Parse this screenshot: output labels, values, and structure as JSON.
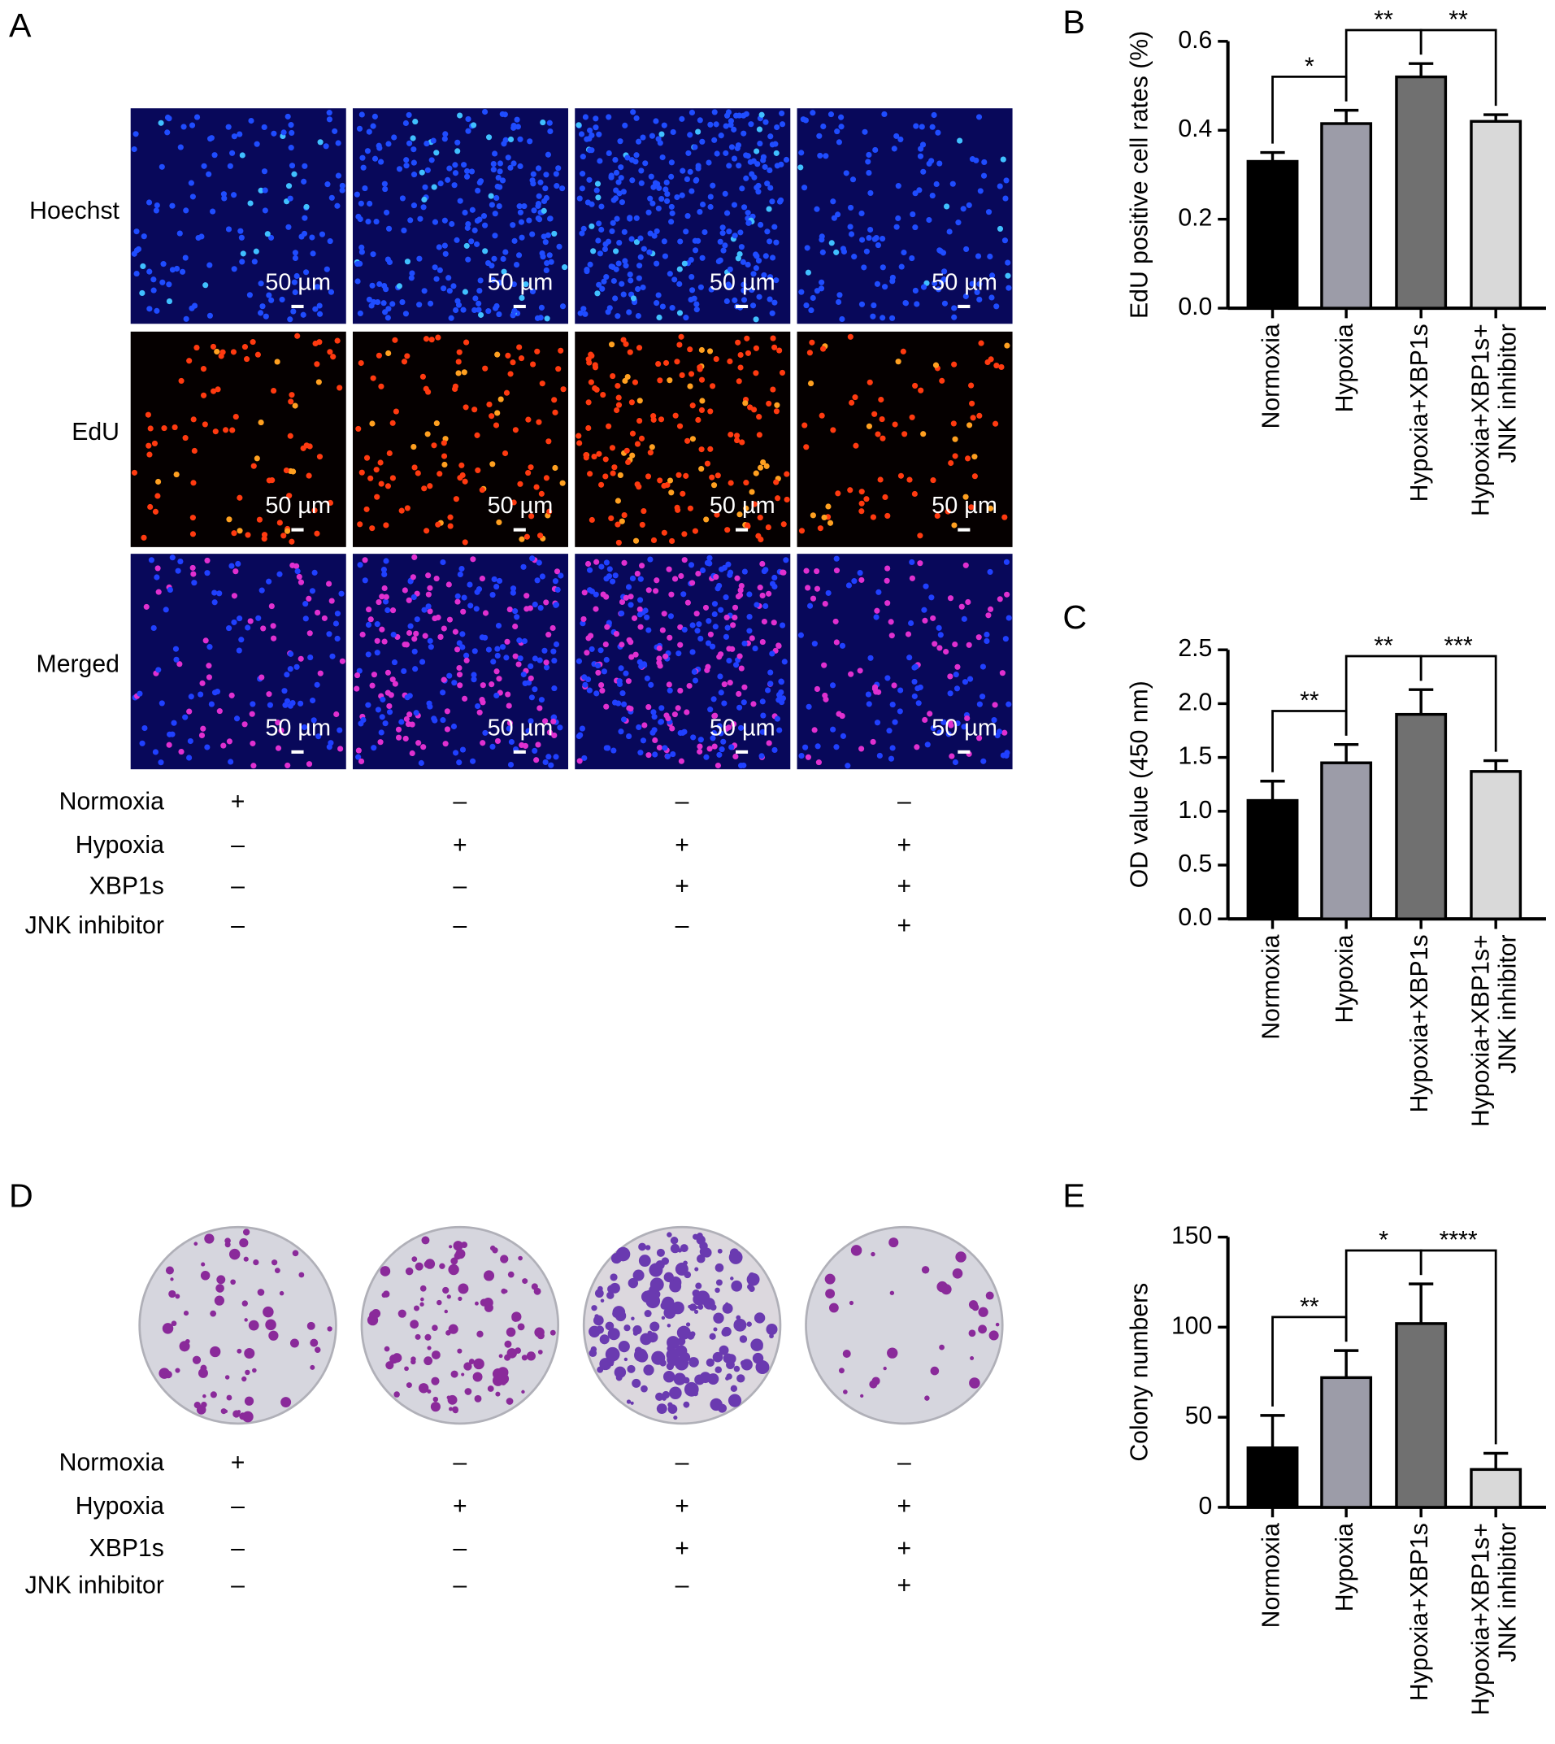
{
  "panel_a": {
    "label": "A",
    "rows": [
      "Hoechst",
      "EdU",
      "Merged"
    ],
    "scale_bar": "50 µm",
    "conditions": [
      {
        "name": "Normoxia",
        "marks": [
          "+",
          "–",
          "–",
          "–"
        ]
      },
      {
        "name": "Hypoxia",
        "marks": [
          "–",
          "+",
          "+",
          "+"
        ]
      },
      {
        "name": "XBP1s",
        "marks": [
          "–",
          "–",
          "+",
          "+"
        ]
      },
      {
        "name": "JNK inhibitor",
        "marks": [
          "–",
          "–",
          "–",
          "+"
        ]
      }
    ]
  },
  "panel_d": {
    "label": "D",
    "conditions": [
      {
        "name": "Normoxia",
        "marks": [
          "+",
          "–",
          "–",
          "–"
        ]
      },
      {
        "name": "Hypoxia",
        "marks": [
          "–",
          "+",
          "+",
          "+"
        ]
      },
      {
        "name": "XBP1s",
        "marks": [
          "–",
          "–",
          "+",
          "+"
        ]
      },
      {
        "name": "JNK inhibitor",
        "marks": [
          "–",
          "–",
          "–",
          "+"
        ]
      }
    ]
  },
  "chart_data": [
    {
      "type": "bar",
      "label": "B",
      "ylabel": "EdU positive cell rates (%)",
      "categories": [
        "Normoxia",
        "Hypoxia",
        "Hypoxia+XBP1s",
        "Hypoxia+XBP1s+\nJNK inhibitor"
      ],
      "values": [
        0.33,
        0.415,
        0.52,
        0.42
      ],
      "errors": [
        0.02,
        0.03,
        0.03,
        0.015
      ],
      "colors": [
        "#000000",
        "#9c9ca8",
        "#707070",
        "#d9d9d9"
      ],
      "ylim": [
        0,
        0.6
      ],
      "yticks": [
        {
          "value": 0,
          "label": "0.0"
        },
        0.2,
        0.4,
        0.6
      ],
      "annotations": [
        "*",
        "**",
        "**"
      ]
    },
    {
      "type": "bar",
      "label": "C",
      "ylabel": "OD value (450 nm)",
      "categories": [
        "Normoxia",
        "Hypoxia",
        "Hypoxia+XBP1s",
        "Hypoxia+XBP1s+\nJNK inhibitor"
      ],
      "values": [
        1.1,
        1.45,
        1.9,
        1.37
      ],
      "errors": [
        0.18,
        0.17,
        0.23,
        0.1
      ],
      "colors": [
        "#000000",
        "#9c9ca8",
        "#707070",
        "#d9d9d9"
      ],
      "ylim": [
        0,
        2.5
      ],
      "yticks": [
        {
          "value": 0,
          "label": "0.0"
        },
        0.5,
        {
          "value": 1,
          "label": "1.0"
        },
        1.5,
        {
          "value": 2,
          "label": "2.0"
        },
        2.5
      ],
      "annotations": [
        "**",
        "**",
        "***"
      ]
    },
    {
      "type": "bar",
      "label": "E",
      "ylabel": "Colony numbers",
      "categories": [
        "Normoxia",
        "Hypoxia",
        "Hypoxia+XBP1s",
        "Hypoxia+XBP1s+\nJNK inhibitor"
      ],
      "values": [
        33,
        72,
        102,
        21
      ],
      "errors": [
        18,
        15,
        22,
        9
      ],
      "colors": [
        "#000000",
        "#9c9ca8",
        "#707070",
        "#d9d9d9"
      ],
      "ylim": [
        0,
        150
      ],
      "yticks": [
        0,
        50,
        100,
        150
      ],
      "annotations": [
        "**",
        "*",
        "****"
      ]
    }
  ]
}
